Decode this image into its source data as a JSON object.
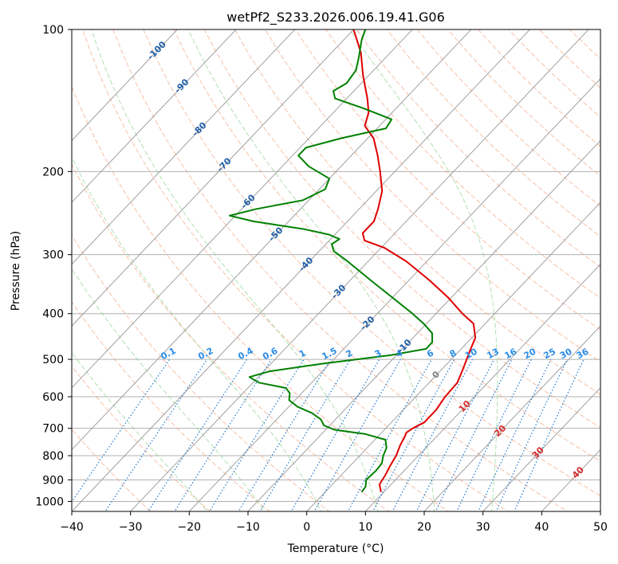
{
  "chart_data": {
    "type": "line",
    "title": "wetPf2_S233.2026.006.19.41.G06",
    "xlabel": "Temperature (°C)",
    "ylabel": "Pressure (hPa)",
    "xlim": [
      -40,
      50
    ],
    "ylim": [
      1050,
      100
    ],
    "y_scale": "log",
    "grid": true,
    "x_ticks": [
      -40,
      -30,
      -20,
      -10,
      0,
      10,
      20,
      30,
      40,
      50
    ],
    "y_ticks": [
      1000,
      900,
      800,
      700,
      600,
      500,
      400,
      300,
      200,
      100
    ],
    "skew_lines": {
      "temperatures": [
        -100,
        -90,
        -80,
        -70,
        -60,
        -50,
        -40,
        -30,
        -20,
        -10,
        0,
        10,
        20,
        30,
        40,
        50
      ]
    },
    "dry_adiabats": {
      "theta_c": [
        -30,
        -20,
        -10,
        0,
        10,
        20,
        30,
        40,
        50,
        60,
        70,
        80,
        90,
        100,
        110,
        120,
        130,
        140,
        150,
        160,
        170,
        180,
        190,
        200
      ]
    },
    "moist_adiabats": {
      "wetbulb_c": [
        -20,
        -10,
        0,
        10,
        20,
        30
      ]
    },
    "mixing_ratio_labels": [
      "0.1",
      "0.2",
      "0.4",
      "0.6",
      "1",
      "1.5",
      "2",
      "3",
      "4",
      "6",
      "8",
      "10",
      "13",
      "16",
      "20",
      "25",
      "30",
      "36"
    ],
    "mixing_ratio_values": [
      0.1,
      0.2,
      0.4,
      0.6,
      1,
      1.5,
      2,
      3,
      4,
      6,
      8,
      10,
      13,
      16,
      20,
      25,
      30,
      36
    ],
    "isotherm_labels_blue": [
      {
        "text": "-100",
        "t": -100,
        "p": 111
      },
      {
        "text": "-90",
        "t": -90,
        "p": 132
      },
      {
        "text": "-80",
        "t": -80,
        "p": 163
      },
      {
        "text": "-70",
        "t": -70,
        "p": 194
      },
      {
        "text": "-60",
        "t": -60,
        "p": 232
      },
      {
        "text": "-50",
        "t": -50,
        "p": 272
      },
      {
        "text": "-40",
        "t": -40,
        "p": 315
      },
      {
        "text": "-30",
        "t": -30,
        "p": 360
      },
      {
        "text": "-20",
        "t": -20,
        "p": 420
      },
      {
        "text": "-10",
        "t": -10,
        "p": 470
      }
    ],
    "isotherm_labels_red": [
      {
        "text": "0",
        "t": 0,
        "p": 540
      },
      {
        "text": "10",
        "t": 10,
        "p": 630
      },
      {
        "text": "20",
        "t": 20,
        "p": 710
      },
      {
        "text": "30",
        "t": 30,
        "p": 790
      },
      {
        "text": "40",
        "t": 40,
        "p": 870
      }
    ],
    "series": [
      {
        "role": "temperature",
        "color": "#e00000",
        "points": [
          {
            "p": 955,
            "t": 9.5
          },
          {
            "p": 920,
            "t": 8.0
          },
          {
            "p": 880,
            "t": 7.5
          },
          {
            "p": 840,
            "t": 6.8
          },
          {
            "p": 800,
            "t": 6.2
          },
          {
            "p": 760,
            "t": 5.2
          },
          {
            "p": 730,
            "t": 4.6
          },
          {
            "p": 715,
            "t": 4.2
          },
          {
            "p": 700,
            "t": 4.6
          },
          {
            "p": 680,
            "t": 5.6
          },
          {
            "p": 640,
            "t": 5.6
          },
          {
            "p": 600,
            "t": 5.0
          },
          {
            "p": 560,
            "t": 4.8
          },
          {
            "p": 520,
            "t": 3.4
          },
          {
            "p": 480,
            "t": 1.8
          },
          {
            "p": 450,
            "t": 0.6
          },
          {
            "p": 420,
            "t": -2.0
          },
          {
            "p": 400,
            "t": -5.5
          },
          {
            "p": 370,
            "t": -10.5
          },
          {
            "p": 340,
            "t": -16.5
          },
          {
            "p": 310,
            "t": -23.5
          },
          {
            "p": 290,
            "t": -29.5
          },
          {
            "p": 280,
            "t": -34.0
          },
          {
            "p": 270,
            "t": -35.5
          },
          {
            "p": 255,
            "t": -35.5
          },
          {
            "p": 240,
            "t": -36.8
          },
          {
            "p": 220,
            "t": -39.0
          },
          {
            "p": 200,
            "t": -42.5
          },
          {
            "p": 185,
            "t": -45.5
          },
          {
            "p": 170,
            "t": -49.0
          },
          {
            "p": 160,
            "t": -52.5
          },
          {
            "p": 150,
            "t": -54.0
          },
          {
            "p": 140,
            "t": -56.5
          },
          {
            "p": 125,
            "t": -61.0
          },
          {
            "p": 112,
            "t": -65.0
          },
          {
            "p": 100,
            "t": -70.0
          }
        ]
      },
      {
        "role": "dewpoint",
        "color": "#008000",
        "points": [
          {
            "p": 955,
            "t": 6.2
          },
          {
            "p": 930,
            "t": 6.0
          },
          {
            "p": 900,
            "t": 5.0
          },
          {
            "p": 860,
            "t": 5.2
          },
          {
            "p": 830,
            "t": 5.0
          },
          {
            "p": 800,
            "t": 4.0
          },
          {
            "p": 770,
            "t": 3.3
          },
          {
            "p": 740,
            "t": 1.8
          },
          {
            "p": 720,
            "t": -2.5
          },
          {
            "p": 705,
            "t": -8.5
          },
          {
            "p": 690,
            "t": -11.0
          },
          {
            "p": 670,
            "t": -12.5
          },
          {
            "p": 650,
            "t": -15.0
          },
          {
            "p": 630,
            "t": -18.5
          },
          {
            "p": 610,
            "t": -21.0
          },
          {
            "p": 590,
            "t": -22.0
          },
          {
            "p": 575,
            "t": -23.5
          },
          {
            "p": 560,
            "t": -29.0
          },
          {
            "p": 545,
            "t": -31.5
          },
          {
            "p": 530,
            "t": -29.0
          },
          {
            "p": 510,
            "t": -21.0
          },
          {
            "p": 490,
            "t": -11.0
          },
          {
            "p": 475,
            "t": -6.0
          },
          {
            "p": 460,
            "t": -6.0
          },
          {
            "p": 440,
            "t": -7.5
          },
          {
            "p": 420,
            "t": -10.5
          },
          {
            "p": 400,
            "t": -14.0
          },
          {
            "p": 370,
            "t": -20.0
          },
          {
            "p": 340,
            "t": -26.5
          },
          {
            "p": 310,
            "t": -33.5
          },
          {
            "p": 295,
            "t": -37.5
          },
          {
            "p": 285,
            "t": -39.0
          },
          {
            "p": 278,
            "t": -38.5
          },
          {
            "p": 272,
            "t": -41.0
          },
          {
            "p": 265,
            "t": -46.0
          },
          {
            "p": 255,
            "t": -56.0
          },
          {
            "p": 248,
            "t": -61.0
          },
          {
            "p": 240,
            "t": -57.5
          },
          {
            "p": 230,
            "t": -51.0
          },
          {
            "p": 218,
            "t": -49.0
          },
          {
            "p": 207,
            "t": -50.0
          },
          {
            "p": 195,
            "t": -55.5
          },
          {
            "p": 185,
            "t": -59.0
          },
          {
            "p": 178,
            "t": -59.0
          },
          {
            "p": 170,
            "t": -54.5
          },
          {
            "p": 162,
            "t": -48.5
          },
          {
            "p": 155,
            "t": -49.0
          },
          {
            "p": 147,
            "t": -55.5
          },
          {
            "p": 140,
            "t": -62.0
          },
          {
            "p": 135,
            "t": -63.5
          },
          {
            "p": 130,
            "t": -62.5
          },
          {
            "p": 122,
            "t": -63.0
          },
          {
            "p": 115,
            "t": -64.5
          },
          {
            "p": 105,
            "t": -67.0
          },
          {
            "p": 100,
            "t": -68.0
          }
        ]
      }
    ],
    "colors": {
      "temperature": "#e00000",
      "dewpoint": "#008000",
      "dry_adiabat": "#f4a582",
      "moist_adiabat": "#8fd18f",
      "mixing_ratio": "#1f78d1",
      "isotherm": "#a0a0a0",
      "isotherm_label_blue": "#1f5fa8",
      "isotherm_label_red": "#d62728",
      "isotherm_label_zero": "#808080",
      "mixing_label": "#2b8ce6",
      "grid": "#b0b0b0"
    }
  }
}
